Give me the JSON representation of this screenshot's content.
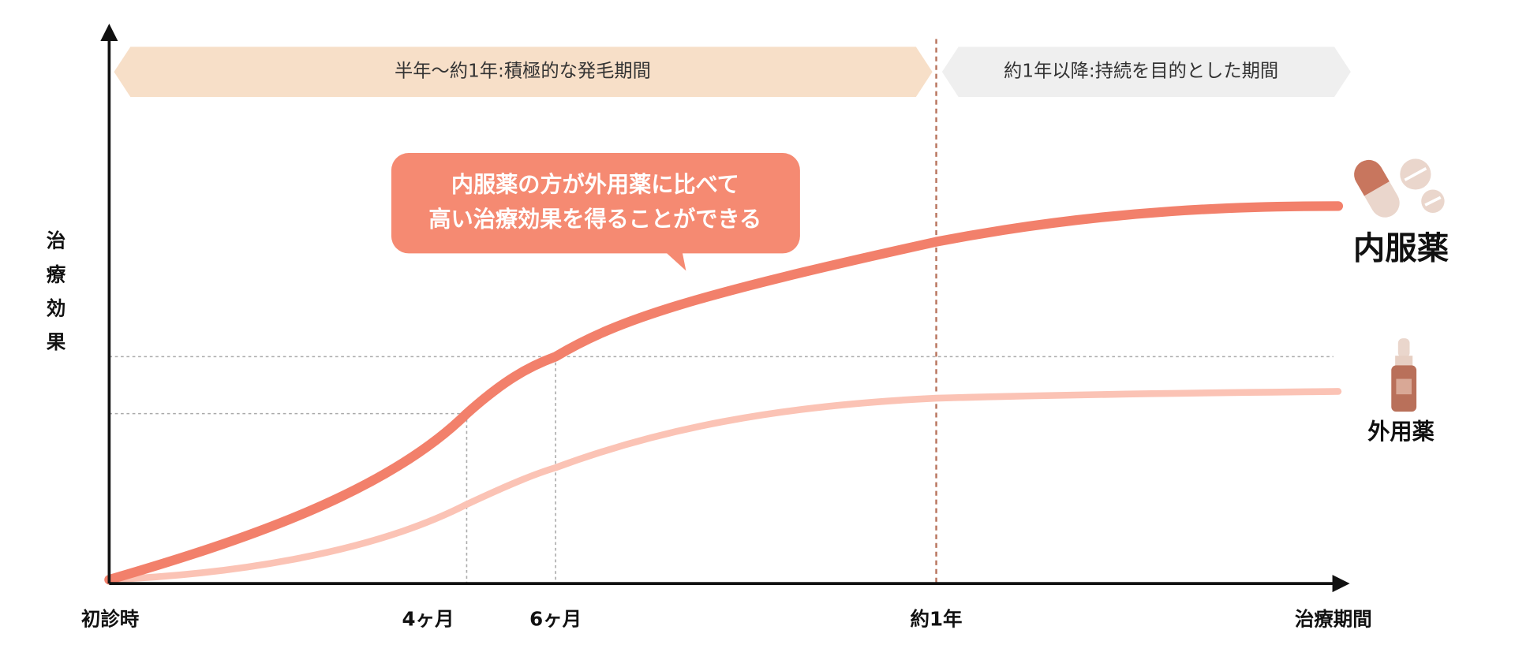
{
  "banners": [
    "半年〜約1年:積極的な発毛期間",
    "約1年以降:持続を目的とした期間"
  ],
  "callout": [
    "内服薬の方が外用薬に比べて",
    "高い治療効果を得ることができる"
  ],
  "y_axis_label": [
    "治",
    "療",
    "効",
    "果"
  ],
  "x_labels": [
    "初診時",
    "4ヶ月",
    "6ヶ月",
    "約1年",
    "治療期間"
  ],
  "series_labels": [
    "内服薬",
    "外用薬"
  ]
}
